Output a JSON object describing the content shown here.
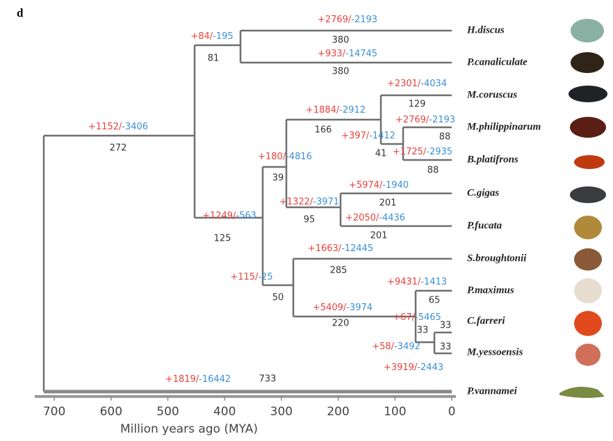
{
  "panel": "d",
  "taxa": [
    "H.discus",
    "P.canaliculate",
    "M.coruscus",
    "M.philippinarum",
    "B.platifrons",
    "C.gigas",
    "P.fucata",
    "S.broughtonii",
    "P.maximus",
    "C.farreri",
    "M.yessoensis",
    "P.vannamei"
  ],
  "branches": [
    {
      "gain": "+1152/",
      "loss": "-3406",
      "time": 272
    },
    {
      "gain": "+84/",
      "loss": "-195",
      "time": 81
    },
    {
      "gain": "+2769/",
      "loss": "-2193",
      "time": 380
    },
    {
      "gain": "+933/",
      "loss": "-14745",
      "time": 380
    },
    {
      "gain": "+1249/",
      "loss": "-563",
      "time": 125
    },
    {
      "gain": "+180/",
      "loss": "-4816",
      "time": 39
    },
    {
      "gain": "+1884/",
      "loss": "-2912",
      "time": 166
    },
    {
      "gain": "+2301/",
      "loss": "-4034",
      "time": 129
    },
    {
      "gain": "+397/",
      "loss": "-1412",
      "time": 41
    },
    {
      "gain": "+2769/",
      "loss": "-2193",
      "time": 88
    },
    {
      "gain": "+1725/",
      "loss": "-2935",
      "time": 88
    },
    {
      "gain": "+1322/",
      "loss": "-3971",
      "time": 95
    },
    {
      "gain": "+5974/",
      "loss": "-1940",
      "time": 201
    },
    {
      "gain": "+2050/",
      "loss": "-4436",
      "time": 201
    },
    {
      "gain": "+115/",
      "loss": "-25",
      "time": 50
    },
    {
      "gain": "+1663/",
      "loss": "-12445",
      "time": 285
    },
    {
      "gain": "+5409/",
      "loss": "-3974",
      "time": 220
    },
    {
      "gain": "+9431/",
      "loss": "-1413",
      "time": 65
    },
    {
      "gain": "+3919/",
      "loss": "-2443",
      "time": 33
    },
    {
      "gain": "+67/",
      "loss": "-5465",
      "time": 33
    },
    {
      "gain": "+58/",
      "loss": "-3492",
      "time": 33
    },
    {
      "gain": "+1819/",
      "loss": "-16442",
      "time": 733
    }
  ],
  "axis": {
    "label": "Million years ago (MYA)",
    "ticks": [
      700,
      600,
      500,
      400,
      300,
      200,
      100,
      0
    ]
  }
}
